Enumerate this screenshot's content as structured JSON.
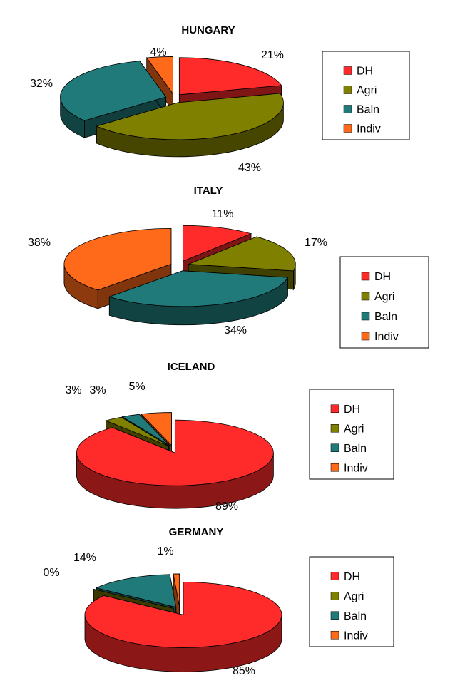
{
  "chart_data": [
    {
      "type": "pie",
      "title": "HUNGARY",
      "categories": [
        "DH",
        "Agri",
        "Baln",
        "Indiv"
      ],
      "values": [
        21,
        43,
        32,
        4
      ],
      "labels": [
        "21%",
        "43%",
        "32%",
        "4%"
      ],
      "legend_placement": "right",
      "exploded": true
    },
    {
      "type": "pie",
      "title": "ITALY",
      "categories": [
        "DH",
        "Agri",
        "Baln",
        "Indiv"
      ],
      "values": [
        11,
        17,
        34,
        38
      ],
      "labels": [
        "11%",
        "17%",
        "34%",
        "38%"
      ],
      "legend_placement": "right",
      "exploded": true
    },
    {
      "type": "pie",
      "title": "ICELAND",
      "categories": [
        "DH",
        "Agri",
        "Baln",
        "Indiv"
      ],
      "values": [
        89,
        3,
        3,
        5
      ],
      "labels": [
        "89%",
        "3%",
        "3%",
        "5%"
      ],
      "legend_placement": "right",
      "exploded": true
    },
    {
      "type": "pie",
      "title": "GERMANY",
      "categories": [
        "DH",
        "Agri",
        "Baln",
        "Indiv"
      ],
      "values": [
        85,
        0,
        14,
        1
      ],
      "labels": [
        "85%",
        "0%",
        "14%",
        "1%"
      ],
      "legend_placement": "right",
      "exploded": true
    }
  ],
  "colors": {
    "DH": "#ff2a2a",
    "Agri": "#808000",
    "Baln": "#217a7a",
    "Indiv": "#ff6a1a"
  },
  "legend_labels": [
    "DH",
    "Agri",
    "Baln",
    "Indiv"
  ]
}
